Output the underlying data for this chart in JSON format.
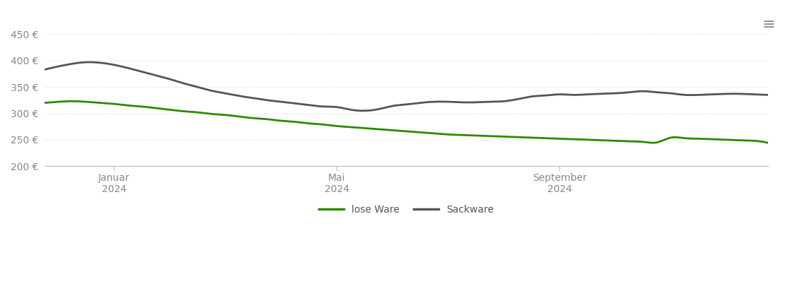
{
  "background_color": "#ffffff",
  "grid_color": "#dddddd",
  "ylim": [
    200,
    460
  ],
  "yticks": [
    200,
    250,
    300,
    350,
    400,
    450
  ],
  "lose_ware_color": "#2d8a00",
  "sackware_color": "#555555",
  "line_width": 2.0,
  "legend_labels": [
    "lose Ware",
    "Sackware"
  ],
  "lose_ware_x": [
    0,
    1,
    2,
    3,
    4,
    5,
    6,
    7,
    8,
    9,
    10,
    11,
    12,
    13,
    14,
    15,
    16,
    17,
    18,
    19,
    20,
    21,
    22,
    23,
    24,
    25,
    26,
    27,
    28,
    29,
    30,
    31,
    32,
    33,
    34,
    35,
    36,
    37,
    38,
    39,
    40,
    41,
    42,
    43,
    44,
    45,
    46,
    47,
    48,
    49,
    50,
    51,
    52
  ],
  "lose_ware_y": [
    320,
    322,
    323,
    322,
    320,
    318,
    315,
    313,
    310,
    307,
    304,
    302,
    299,
    297,
    294,
    291,
    289,
    286,
    284,
    281,
    279,
    276,
    274,
    272,
    270,
    268,
    266,
    264,
    262,
    260,
    259,
    258,
    257,
    256,
    255,
    254,
    253,
    252,
    251,
    250,
    249,
    248,
    247,
    246,
    245,
    254,
    253,
    252,
    251,
    250,
    249,
    248,
    244
  ],
  "sackware_x": [
    0,
    1,
    2,
    3,
    4,
    5,
    6,
    7,
    8,
    9,
    10,
    11,
    12,
    13,
    14,
    15,
    16,
    17,
    18,
    19,
    20,
    21,
    22,
    23,
    24,
    25,
    26,
    27,
    28,
    29,
    30,
    31,
    32,
    33,
    34,
    35,
    36,
    37,
    38,
    39,
    40,
    41,
    42,
    43,
    44,
    45,
    46,
    47,
    48,
    49,
    50,
    51,
    52
  ],
  "sackware_y": [
    383,
    389,
    394,
    397,
    396,
    392,
    386,
    379,
    372,
    365,
    357,
    350,
    343,
    338,
    333,
    329,
    325,
    322,
    319,
    316,
    313,
    312,
    307,
    305,
    308,
    314,
    317,
    320,
    322,
    322,
    321,
    321,
    322,
    323,
    327,
    332,
    334,
    336,
    335,
    336,
    337,
    338,
    340,
    342,
    340,
    338,
    335,
    335,
    336,
    337,
    337,
    336,
    335
  ],
  "x_tick_positions": [
    5,
    21,
    37
  ],
  "x_tick_labels": [
    "Januar\n2024",
    "Mai\n2024",
    "September\n2024"
  ],
  "xlim": [
    0,
    52
  ]
}
